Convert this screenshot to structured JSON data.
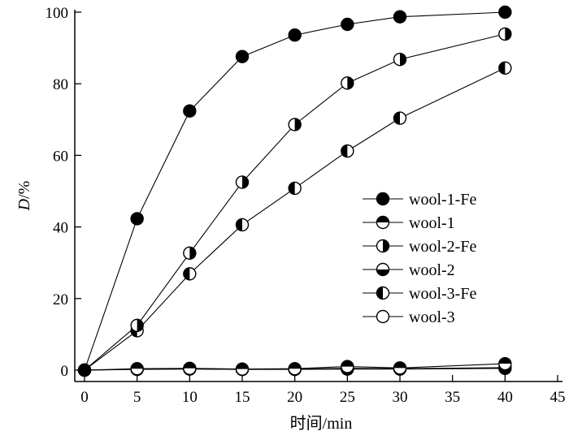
{
  "chart_data": {
    "type": "line",
    "title": "",
    "xlabel": "时间/min",
    "ylabel_italic": "D",
    "ylabel_rest": "/%",
    "xlim": [
      0,
      45
    ],
    "ylim": [
      0,
      100
    ],
    "xticks": [
      0,
      5,
      10,
      15,
      20,
      25,
      30,
      35,
      40,
      45
    ],
    "yticks": [
      0,
      20,
      40,
      60,
      80,
      100
    ],
    "grid": false,
    "legend_position": "center-right",
    "x": [
      0,
      5,
      10,
      15,
      20,
      25,
      30,
      40
    ],
    "series": [
      {
        "name": "wool-1-Fe",
        "marker": "filled",
        "values": [
          0,
          42.3,
          72.4,
          87.6,
          93.6,
          96.6,
          98.7,
          100
        ]
      },
      {
        "name": "wool-1",
        "marker": "top-half",
        "values": [
          0,
          0.4,
          0.5,
          0.3,
          0.4,
          1.0,
          0.6,
          1.8
        ]
      },
      {
        "name": "wool-2-Fe",
        "marker": "right-half",
        "values": [
          0,
          12.5,
          32.7,
          52.5,
          68.6,
          80.2,
          86.8,
          93.9
        ]
      },
      {
        "name": "wool-2",
        "marker": "bottom-half",
        "values": [
          0,
          0.3,
          0.4,
          0.2,
          0.3,
          0.5,
          0.4,
          0.7
        ]
      },
      {
        "name": "wool-3-Fe",
        "marker": "left-half",
        "values": [
          0,
          11.0,
          26.9,
          40.6,
          50.8,
          61.2,
          70.4,
          84.4
        ]
      },
      {
        "name": "wool-3",
        "marker": "open",
        "values": [
          0,
          0.2,
          0.3,
          0.2,
          0.2,
          0.3,
          0.3,
          0.5
        ]
      }
    ]
  }
}
